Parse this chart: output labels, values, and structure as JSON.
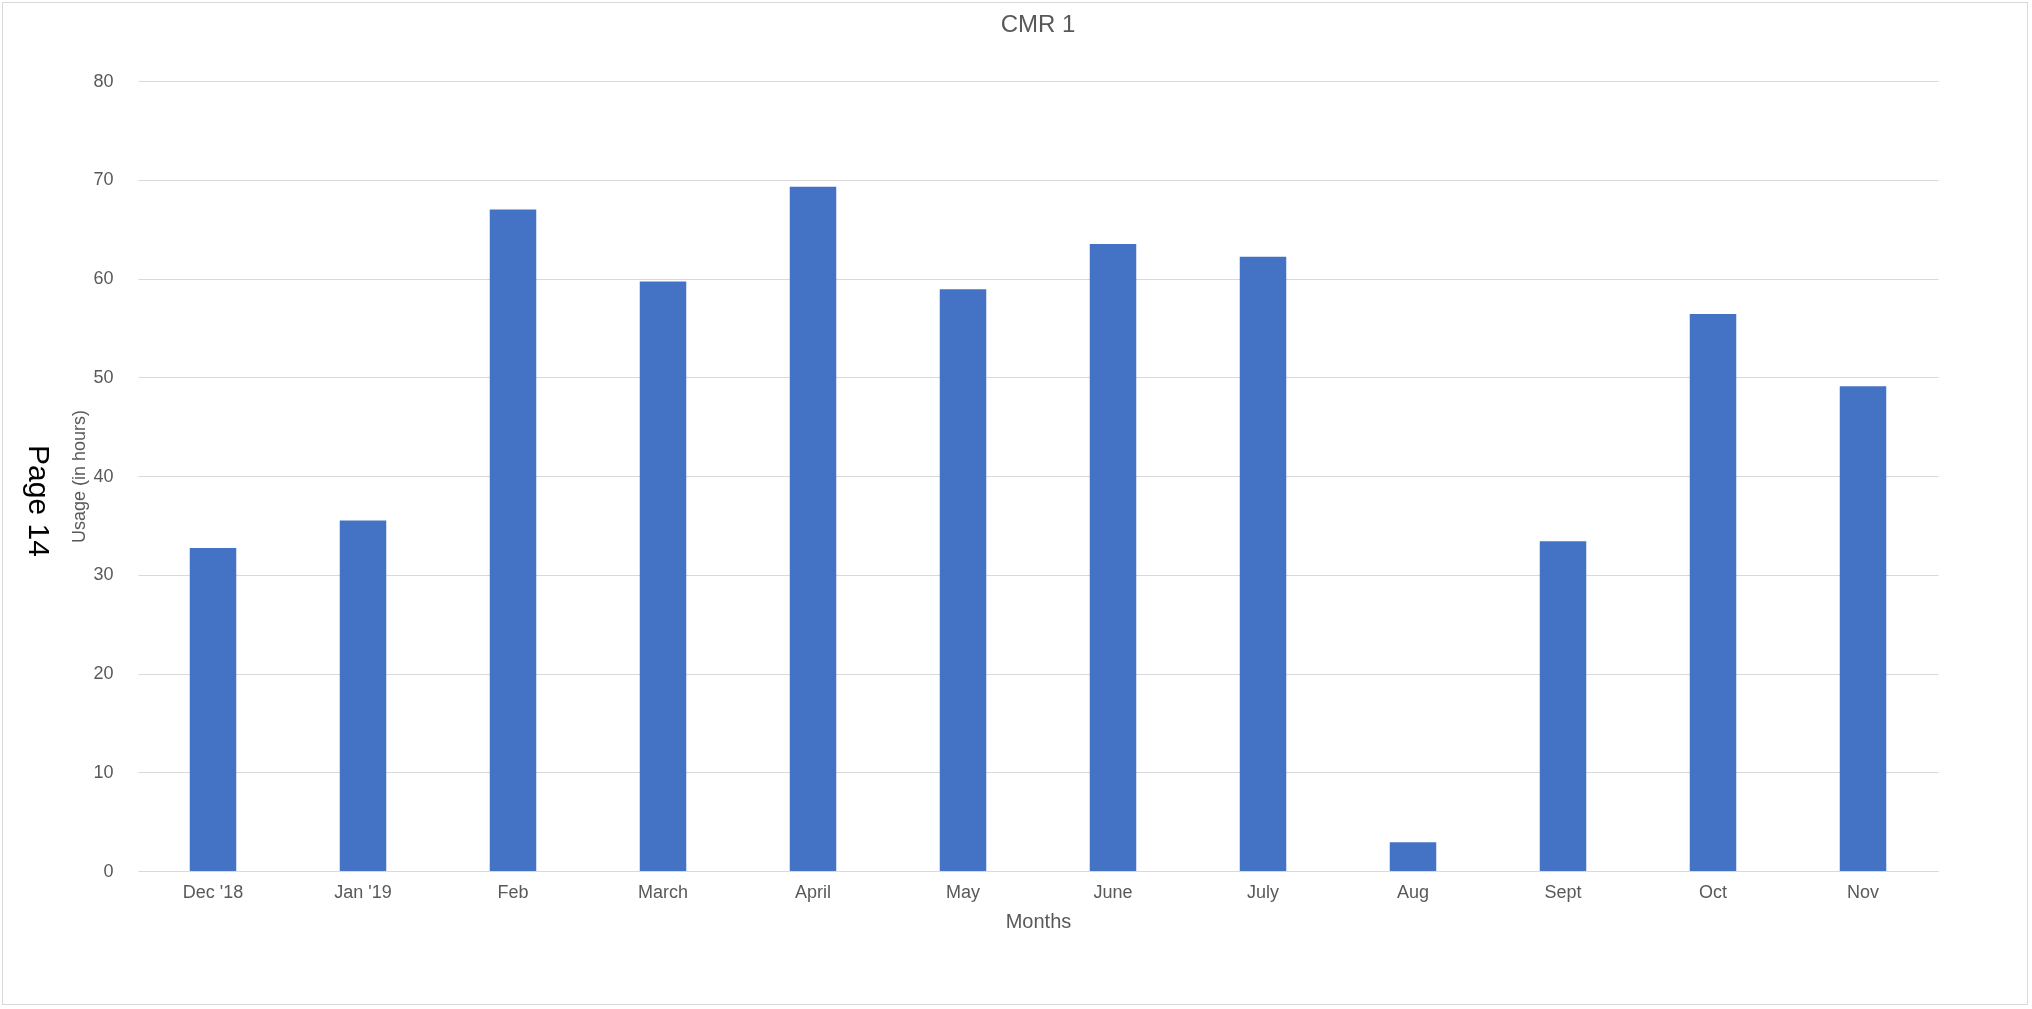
{
  "chart_data": {
    "type": "bar",
    "title": "CMR 1",
    "xlabel": "Months",
    "ylabel": "Usage (in hours)",
    "categories": [
      "Dec '18",
      "Jan '19",
      "Feb",
      "March",
      "April",
      "May",
      "June",
      "July",
      "Aug",
      "Sept",
      "Oct",
      "Nov"
    ],
    "values": [
      32.7,
      35.5,
      67.0,
      59.7,
      69.3,
      58.9,
      63.5,
      62.2,
      2.9,
      33.4,
      56.4,
      49.1
    ],
    "color": "#4472c4",
    "ylim": [
      0,
      80
    ],
    "yticks": [
      0,
      10,
      20,
      30,
      40,
      50,
      60,
      70,
      80
    ],
    "grid": "y",
    "annotations": [
      "Page 14"
    ]
  }
}
